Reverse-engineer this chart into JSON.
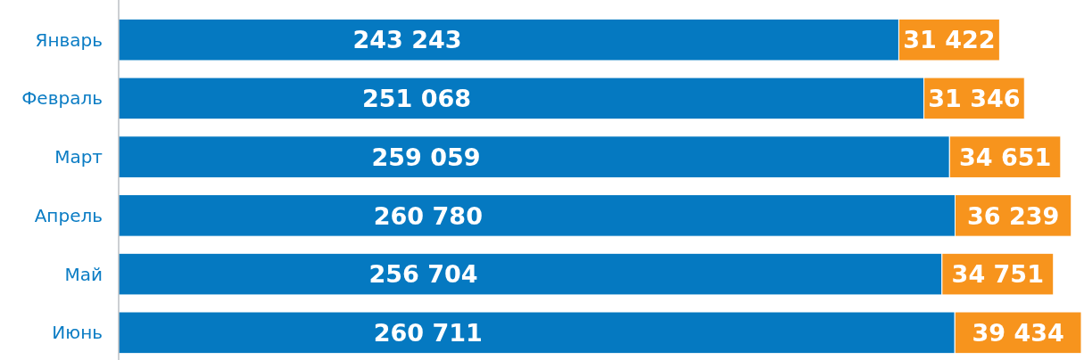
{
  "chart_data": {
    "type": "bar",
    "orientation": "horizontal",
    "stacked": true,
    "data_labels": true,
    "categories": [
      "Январь",
      "Февраль",
      "Март",
      "Апрель",
      "Май",
      "Июнь"
    ],
    "series": [
      {
        "color": "#0579c1",
        "values": [
          243243,
          251068,
          259059,
          260780,
          256704,
          260711
        ]
      },
      {
        "color": "#f7941d",
        "values": [
          31422,
          31346,
          34651,
          36239,
          34751,
          39434
        ]
      }
    ]
  }
}
